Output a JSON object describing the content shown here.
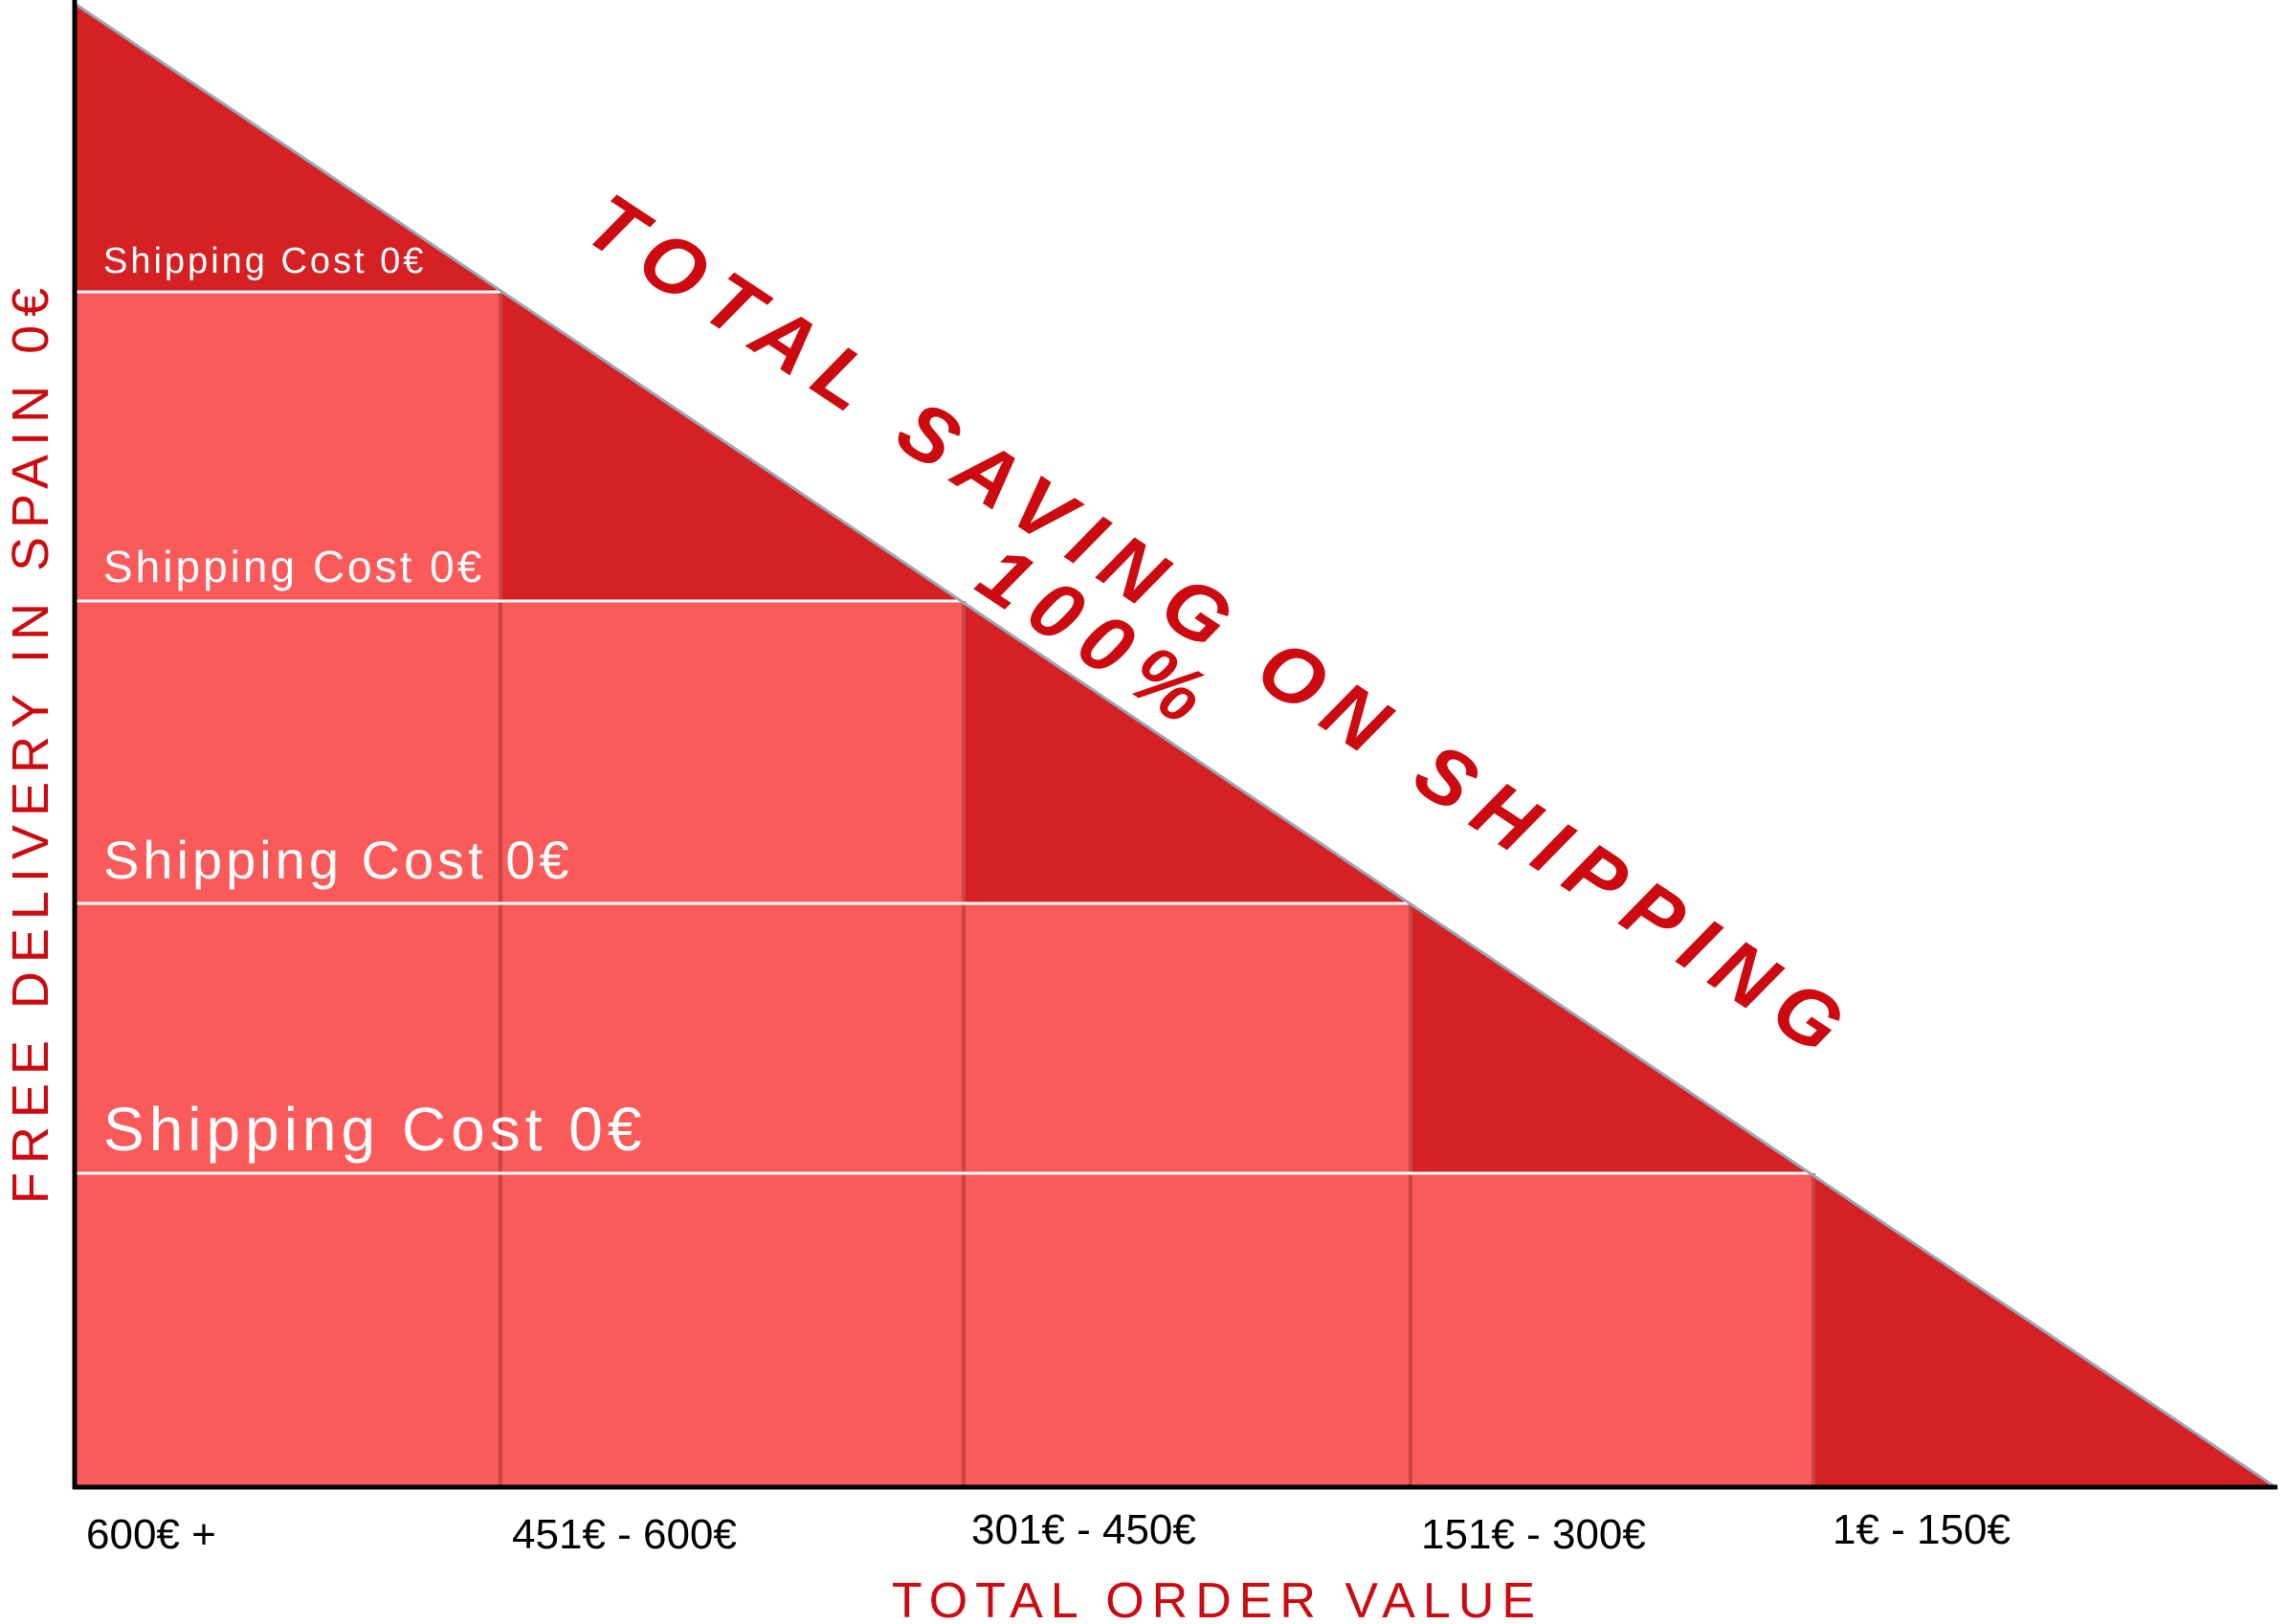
{
  "chart_data": {
    "type": "area",
    "xlabel": "TOTAL ORDER VALUE",
    "ylabel": "FREE DELIVERY IN SPAIN 0€",
    "categories": [
      "600€ +",
      "451€ - 600€",
      "301€ - 450€",
      "151€ - 300€",
      "1€ - 150€"
    ],
    "tiers": [
      {
        "label": "Shipping Cost 0€",
        "level": 4
      },
      {
        "label": "Shipping Cost 0€",
        "level": 3
      },
      {
        "label": "Shipping Cost 0€",
        "level": 2
      },
      {
        "label": "Shipping Cost 0€",
        "level": 1
      }
    ],
    "annotation": {
      "line1": "TOTAL SAVING ON SHIPPING",
      "line2": "100%"
    }
  },
  "colors": {
    "dark_red": "#d62124",
    "light_red": "#fb5a5a",
    "accent_text": "#cc0a0f",
    "grid_line": "#ffffff",
    "divider": "#c94545",
    "axis": "#000000"
  }
}
